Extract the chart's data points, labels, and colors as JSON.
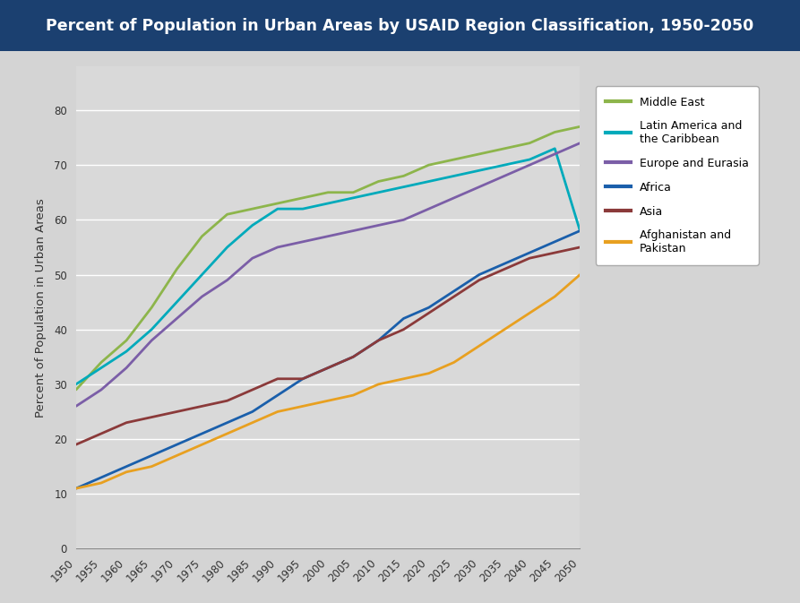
{
  "title": "Percent of Population in Urban Areas by USAID Region Classification, 1950-2050",
  "title_bg_color": "#1B4070",
  "title_text_color": "#FFFFFF",
  "ylabel": "Percent of Population in Urban Areas",
  "bg_color": "#D4D4D4",
  "plot_bg_color": "#D9D9D9",
  "grid_color": "#FFFFFF",
  "years": [
    1950,
    1955,
    1960,
    1965,
    1970,
    1975,
    1980,
    1985,
    1990,
    1995,
    2000,
    2005,
    2010,
    2015,
    2020,
    2025,
    2030,
    2035,
    2040,
    2045,
    2050
  ],
  "series": {
    "Middle East": {
      "color": "#8DB54B",
      "values": [
        29,
        34,
        38,
        44,
        51,
        57,
        61,
        62,
        63,
        64,
        65,
        65,
        67,
        68,
        70,
        71,
        72,
        73,
        74,
        76,
        77
      ]
    },
    "Latin America and\nthe Caribbean": {
      "color": "#00AABB",
      "values": [
        30,
        33,
        36,
        40,
        45,
        50,
        55,
        59,
        62,
        62,
        63,
        64,
        65,
        66,
        67,
        68,
        69,
        70,
        71,
        73,
        58
      ]
    },
    "Europe and Eurasia": {
      "color": "#7B5EA7",
      "values": [
        26,
        29,
        33,
        38,
        42,
        46,
        49,
        53,
        55,
        56,
        57,
        58,
        59,
        60,
        62,
        64,
        66,
        68,
        70,
        72,
        74
      ]
    },
    "Africa": {
      "color": "#1A5FAB",
      "values": [
        11,
        13,
        15,
        17,
        19,
        21,
        23,
        25,
        28,
        31,
        33,
        35,
        38,
        42,
        44,
        47,
        50,
        52,
        54,
        56,
        58
      ]
    },
    "Asia": {
      "color": "#8B3A3A",
      "values": [
        19,
        21,
        23,
        24,
        25,
        26,
        27,
        29,
        31,
        31,
        33,
        35,
        38,
        40,
        43,
        46,
        49,
        51,
        53,
        54,
        55
      ]
    },
    "Afghanistan and\nPakistan": {
      "color": "#E8A020",
      "values": [
        11,
        12,
        14,
        15,
        17,
        19,
        21,
        23,
        25,
        26,
        27,
        28,
        30,
        31,
        32,
        34,
        37,
        40,
        43,
        46,
        50
      ]
    }
  },
  "ylim": [
    0,
    88
  ],
  "yticks": [
    0,
    10,
    20,
    30,
    40,
    50,
    60,
    70,
    80
  ],
  "legend_labels": [
    "Middle East",
    "Latin America and\nthe Caribbean",
    "Europe and Eurasia",
    "Africa",
    "Asia",
    "Afghanistan and\nPakistan"
  ],
  "legend_colors": [
    "#8DB54B",
    "#00AABB",
    "#7B5EA7",
    "#1A5FAB",
    "#8B3A3A",
    "#E8A020"
  ]
}
